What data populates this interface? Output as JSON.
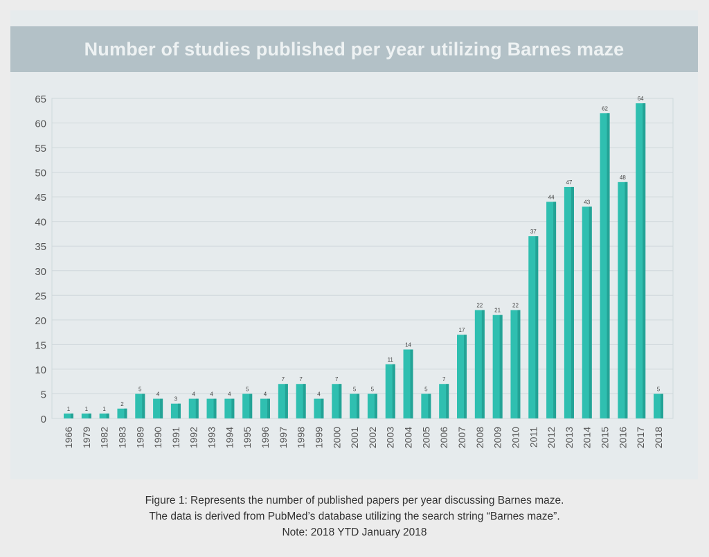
{
  "chart_data": {
    "type": "bar",
    "title": "Number of studies published per year utilizing Barnes maze",
    "xlabel": "",
    "ylabel": "",
    "categories": [
      "1966",
      "1979",
      "1982",
      "1983",
      "1989",
      "1990",
      "1991",
      "1992",
      "1993",
      "1994",
      "1995",
      "1996",
      "1997",
      "1998",
      "1999",
      "2000",
      "2001",
      "2002",
      "2003",
      "2004",
      "2005",
      "2006",
      "2007",
      "2008",
      "2009",
      "2010",
      "2011",
      "2012",
      "2013",
      "2014",
      "2015",
      "2016",
      "2017",
      "2018"
    ],
    "values": [
      1,
      1,
      1,
      2,
      5,
      4,
      3,
      4,
      4,
      4,
      5,
      4,
      7,
      7,
      4,
      7,
      5,
      5,
      11,
      14,
      5,
      7,
      17,
      22,
      21,
      22,
      37,
      44,
      47,
      43,
      62,
      48,
      64,
      5
    ],
    "ylim": [
      0,
      65
    ],
    "yticks": [
      0,
      5,
      10,
      15,
      20,
      25,
      30,
      35,
      40,
      45,
      50,
      55,
      60,
      65
    ],
    "grid": true,
    "data_labels": true,
    "bar_color": "#2fbfb0",
    "bar_shade_color": "#23a396"
  },
  "caption": {
    "line1": "Figure 1: Represents the number of published papers per year discussing Barnes maze.",
    "line2": "The data is derived from PubMed’s database utilizing the search string “Barnes maze”.",
    "line3": "Note: 2018 YTD January 2018"
  }
}
